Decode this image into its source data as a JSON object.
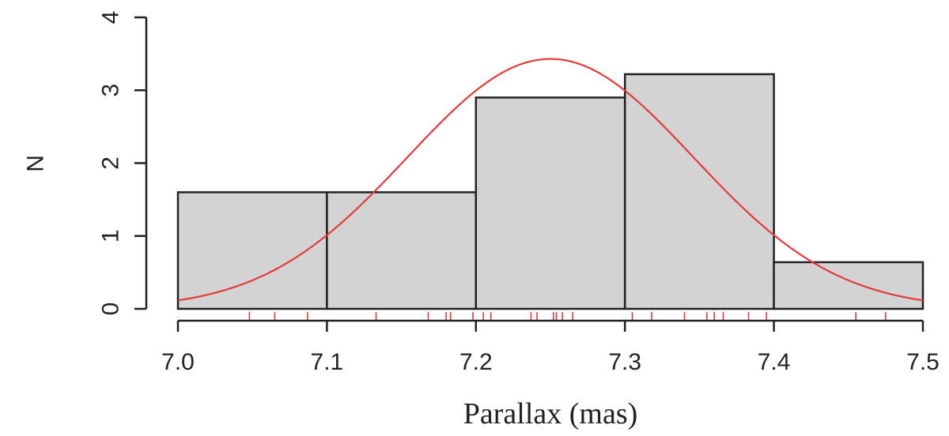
{
  "chart_data": {
    "type": "bar",
    "subtype": "histogram",
    "xlabel": "Parallax (mas)",
    "ylabel": "N",
    "xlim": [
      7.0,
      7.5
    ],
    "ylim": [
      0,
      4
    ],
    "x_ticks": [
      "7.0",
      "7.1",
      "7.2",
      "7.3",
      "7.4",
      "7.5"
    ],
    "y_ticks": [
      "0",
      "1",
      "2",
      "3",
      "4"
    ],
    "bins": [
      {
        "x0": 7.0,
        "x1": 7.1,
        "value": 1.6
      },
      {
        "x0": 7.1,
        "x1": 7.2,
        "value": 1.6
      },
      {
        "x0": 7.2,
        "x1": 7.3,
        "value": 2.9
      },
      {
        "x0": 7.3,
        "x1": 7.4,
        "value": 3.22
      },
      {
        "x0": 7.4,
        "x1": 7.5,
        "value": 0.64
      }
    ],
    "curve": {
      "type": "gaussian",
      "mean": 7.25,
      "sd": 0.096,
      "peak": 3.43,
      "color": "#e53a3a"
    },
    "rug": [
      7.048,
      7.065,
      7.087,
      7.133,
      7.168,
      7.18,
      7.183,
      7.198,
      7.205,
      7.21,
      7.237,
      7.241,
      7.252,
      7.254,
      7.258,
      7.265,
      7.305,
      7.318,
      7.34,
      7.355,
      7.36,
      7.366,
      7.383,
      7.395,
      7.455,
      7.475
    ],
    "rug_color": "#e53a3a",
    "bar_fill": "#d3d3d3",
    "grid": false
  }
}
